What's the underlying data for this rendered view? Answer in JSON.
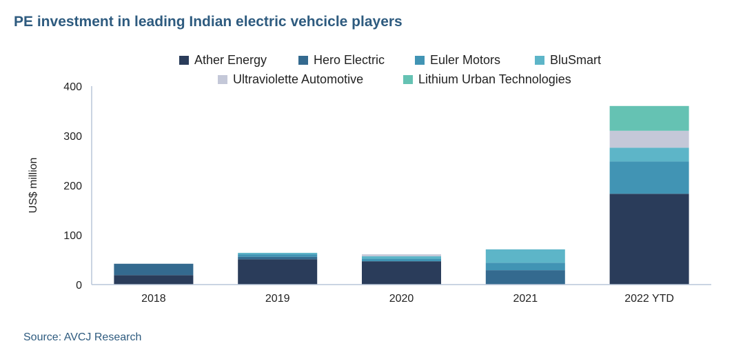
{
  "chart_data": {
    "type": "bar",
    "stacked": true,
    "title": "PE investment in leading Indian electric vehcicle players",
    "source": "Source: AVCJ Research",
    "ylabel": "US$ million",
    "xlabel": "",
    "ylim": [
      0,
      400
    ],
    "yticks": [
      0,
      100,
      200,
      300,
      400
    ],
    "grid": false,
    "legend_position": "top",
    "categories": [
      "2018",
      "2019",
      "2020",
      "2021",
      "2022 YTD"
    ],
    "series": [
      {
        "name": "Ather Energy",
        "color": "#2a3c5a",
        "values": [
          19,
          51,
          47,
          0,
          183
        ]
      },
      {
        "name": "Hero Electric",
        "color": "#346a8f",
        "values": [
          23,
          5,
          0,
          29,
          0
        ]
      },
      {
        "name": "Euler Motors",
        "color": "#4194b4",
        "values": [
          0,
          5,
          5,
          15,
          65
        ]
      },
      {
        "name": "BluSmart",
        "color": "#5db5c8",
        "values": [
          0,
          3,
          5,
          27,
          28
        ]
      },
      {
        "name": "Ultraviolette Automotive",
        "color": "#c4c8d8",
        "values": [
          0,
          0,
          4,
          0,
          34
        ]
      },
      {
        "name": "Lithium Urban Technologies",
        "color": "#65c2b3",
        "values": [
          0,
          0,
          0,
          0,
          50
        ]
      }
    ]
  }
}
